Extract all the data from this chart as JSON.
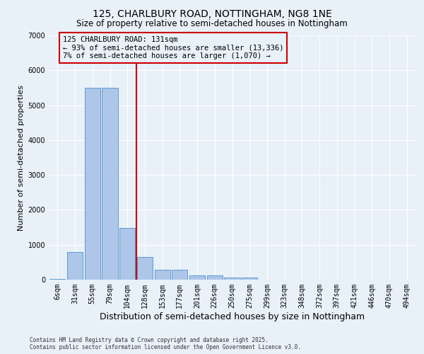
{
  "title": "125, CHARLBURY ROAD, NOTTINGHAM, NG8 1NE",
  "subtitle": "Size of property relative to semi-detached houses in Nottingham",
  "xlabel": "Distribution of semi-detached houses by size in Nottingham",
  "ylabel": "Number of semi-detached properties",
  "categories": [
    "6sqm",
    "31sqm",
    "55sqm",
    "79sqm",
    "104sqm",
    "128sqm",
    "153sqm",
    "177sqm",
    "201sqm",
    "226sqm",
    "250sqm",
    "275sqm",
    "299sqm",
    "323sqm",
    "348sqm",
    "372sqm",
    "397sqm",
    "421sqm",
    "446sqm",
    "470sqm",
    "494sqm"
  ],
  "values": [
    30,
    800,
    5500,
    5500,
    1480,
    650,
    290,
    290,
    130,
    130,
    70,
    60,
    0,
    0,
    0,
    0,
    0,
    0,
    0,
    0,
    0
  ],
  "bar_color": "#aec6e8",
  "bar_edge_color": "#5b9bd5",
  "vline_color": "#cc0000",
  "ylim": [
    0,
    7000
  ],
  "yticks": [
    0,
    1000,
    2000,
    3000,
    4000,
    5000,
    6000,
    7000
  ],
  "annotation_title": "125 CHARLBURY ROAD: 131sqm",
  "annotation_line1": "← 93% of semi-detached houses are smaller (13,336)",
  "annotation_line2": "7% of semi-detached houses are larger (1,070) →",
  "annotation_box_color": "#cc0000",
  "background_color": "#e8f0f8",
  "footer1": "Contains HM Land Registry data © Crown copyright and database right 2025.",
  "footer2": "Contains public sector information licensed under the Open Government Licence v3.0.",
  "title_fontsize": 10,
  "subtitle_fontsize": 8.5,
  "xlabel_fontsize": 9,
  "ylabel_fontsize": 8,
  "tick_fontsize": 7,
  "annotation_fontsize": 7.5
}
